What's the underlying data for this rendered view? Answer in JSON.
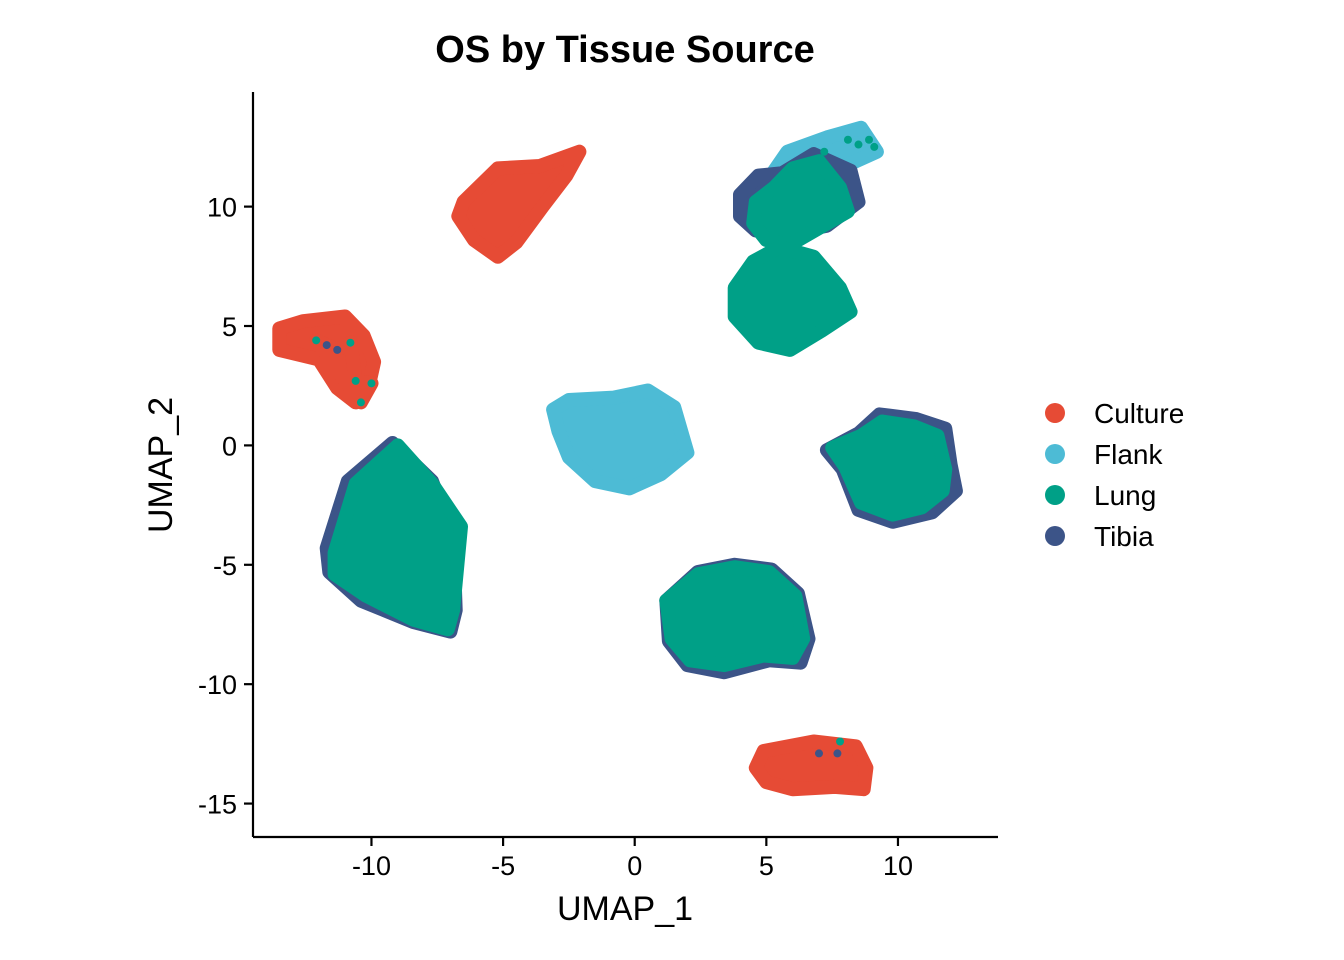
{
  "chart_data": {
    "type": "scatter",
    "title": "OS by Tissue Source",
    "xlabel": "UMAP_1",
    "ylabel": "UMAP_2",
    "xlim": [
      -14.5,
      13.8
    ],
    "ylim": [
      -16.4,
      14.8
    ],
    "xticks": [
      -10,
      -5,
      0,
      5,
      10
    ],
    "yticks": [
      10,
      5,
      0,
      -5,
      -10,
      -15
    ],
    "xtick_labels": [
      "-10",
      "-5",
      "0",
      "5",
      "10"
    ],
    "ytick_labels": [
      "10",
      "5",
      "0",
      "-5",
      "-10",
      "-15"
    ],
    "grid": false,
    "legend_position": "right",
    "series": [
      {
        "name": "Culture",
        "color": "#E64B35"
      },
      {
        "name": "Flank",
        "color": "#4DBBD5"
      },
      {
        "name": "Lung",
        "color": "#00A087"
      },
      {
        "name": "Tibia",
        "color": "#3C5488"
      }
    ],
    "clusters": [
      {
        "series": "Culture",
        "points": [
          [
            -6.5,
            10.2
          ],
          [
            -5.2,
            11.6
          ],
          [
            -3.6,
            11.7
          ],
          [
            -2.1,
            12.3
          ],
          [
            -2.6,
            11.3
          ],
          [
            -3.5,
            10.0
          ],
          [
            -4.5,
            8.5
          ],
          [
            -5.2,
            7.9
          ],
          [
            -6.1,
            8.6
          ],
          [
            -6.7,
            9.6
          ]
        ]
      },
      {
        "series": "Culture",
        "points": [
          [
            -13.5,
            4.9
          ],
          [
            -12.6,
            5.2
          ],
          [
            -11.0,
            5.4
          ],
          [
            -10.3,
            4.6
          ],
          [
            -9.9,
            3.5
          ],
          [
            -10.1,
            2.5
          ],
          [
            -10.6,
            1.8
          ],
          [
            -11.3,
            2.4
          ],
          [
            -12.0,
            3.6
          ],
          [
            -13.5,
            4.0
          ]
        ]
      },
      {
        "series": "Culture",
        "points": [
          [
            -12.1,
            4.4
          ],
          [
            -11.7,
            4.2
          ],
          [
            -11.3,
            4.0
          ],
          [
            -10.8,
            4.3
          ],
          [
            -10.6,
            2.7
          ],
          [
            -10.0,
            2.6
          ],
          [
            -10.4,
            1.8
          ]
        ]
      },
      {
        "series": "Culture",
        "points": [
          [
            4.9,
            -12.8
          ],
          [
            6.8,
            -12.4
          ],
          [
            8.4,
            -12.6
          ],
          [
            8.8,
            -13.5
          ],
          [
            8.7,
            -14.4
          ],
          [
            7.6,
            -14.3
          ],
          [
            6.0,
            -14.4
          ],
          [
            5.0,
            -14.1
          ],
          [
            4.6,
            -13.5
          ]
        ]
      },
      {
        "series": "Flank",
        "points": [
          [
            -3.1,
            1.5
          ],
          [
            -2.5,
            1.9
          ],
          [
            -0.8,
            2.0
          ],
          [
            0.5,
            2.3
          ],
          [
            1.5,
            1.6
          ],
          [
            2.0,
            -0.3
          ],
          [
            1.0,
            -1.2
          ],
          [
            -0.2,
            -1.8
          ],
          [
            -1.5,
            -1.5
          ],
          [
            -2.5,
            -0.5
          ],
          [
            -2.9,
            0.6
          ]
        ]
      },
      {
        "series": "Flank",
        "points": [
          [
            5.3,
            11.5
          ],
          [
            5.8,
            12.3
          ],
          [
            7.3,
            12.9
          ],
          [
            8.6,
            13.3
          ],
          [
            9.2,
            12.3
          ],
          [
            8.2,
            11.8
          ],
          [
            6.8,
            11.2
          ],
          [
            5.8,
            10.5
          ],
          [
            5.0,
            10.5
          ]
        ]
      },
      {
        "series": "Tibia",
        "points": [
          [
            4.0,
            10.5
          ],
          [
            4.7,
            11.3
          ],
          [
            5.6,
            11.4
          ],
          [
            6.8,
            12.2
          ],
          [
            8.2,
            11.5
          ],
          [
            8.5,
            10.2
          ],
          [
            7.3,
            9.2
          ],
          [
            5.9,
            8.9
          ],
          [
            4.6,
            9.0
          ],
          [
            4.0,
            9.6
          ]
        ]
      },
      {
        "series": "Lung",
        "points": [
          [
            4.6,
            10.2
          ],
          [
            5.3,
            10.8
          ],
          [
            6.0,
            11.6
          ],
          [
            7.0,
            11.9
          ],
          [
            7.8,
            10.8
          ],
          [
            8.1,
            9.8
          ],
          [
            7.0,
            9.1
          ],
          [
            5.9,
            8.4
          ],
          [
            5.0,
            8.6
          ],
          [
            4.5,
            9.3
          ]
        ]
      },
      {
        "series": "Lung",
        "points": [
          [
            3.8,
            6.6
          ],
          [
            4.5,
            7.7
          ],
          [
            5.5,
            8.3
          ],
          [
            6.8,
            7.9
          ],
          [
            7.8,
            6.6
          ],
          [
            8.2,
            5.6
          ],
          [
            7.1,
            4.8
          ],
          [
            5.9,
            4.0
          ],
          [
            4.7,
            4.3
          ],
          [
            3.8,
            5.4
          ]
        ]
      },
      {
        "series": "Tibia",
        "points": [
          [
            7.3,
            -0.2
          ],
          [
            8.5,
            0.5
          ],
          [
            9.3,
            1.3
          ],
          [
            10.7,
            1.1
          ],
          [
            11.8,
            0.7
          ],
          [
            12.0,
            -0.8
          ],
          [
            12.2,
            -1.9
          ],
          [
            11.3,
            -2.8
          ],
          [
            9.8,
            -3.2
          ],
          [
            8.5,
            -2.7
          ],
          [
            7.9,
            -1.0
          ]
        ]
      },
      {
        "series": "Lung",
        "points": [
          [
            7.5,
            -0.1
          ],
          [
            8.6,
            0.4
          ],
          [
            9.4,
            1.0
          ],
          [
            10.6,
            0.8
          ],
          [
            11.5,
            0.4
          ],
          [
            11.8,
            -1.0
          ],
          [
            11.7,
            -1.9
          ],
          [
            10.9,
            -2.6
          ],
          [
            9.8,
            -2.9
          ],
          [
            8.6,
            -2.4
          ],
          [
            8.0,
            -0.9
          ]
        ]
      },
      {
        "series": "Tibia",
        "points": [
          [
            -11.7,
            -4.3
          ],
          [
            -10.9,
            -1.5
          ],
          [
            -9.2,
            0.1
          ],
          [
            -7.7,
            -1.5
          ],
          [
            -6.9,
            -3.8
          ],
          [
            -6.8,
            -6.9
          ],
          [
            -7.0,
            -7.8
          ],
          [
            -8.4,
            -7.4
          ],
          [
            -10.4,
            -6.5
          ],
          [
            -11.6,
            -5.3
          ]
        ]
      },
      {
        "series": "Lung",
        "points": [
          [
            -11.4,
            -4.5
          ],
          [
            -10.6,
            -1.6
          ],
          [
            -9.0,
            0.0
          ],
          [
            -7.7,
            -1.6
          ],
          [
            -6.6,
            -3.4
          ],
          [
            -6.9,
            -6.9
          ],
          [
            -7.1,
            -7.7
          ],
          [
            -8.4,
            -7.3
          ],
          [
            -10.2,
            -6.3
          ],
          [
            -11.4,
            -5.4
          ]
        ]
      },
      {
        "series": "Tibia",
        "points": [
          [
            1.2,
            -6.5
          ],
          [
            2.4,
            -5.3
          ],
          [
            3.8,
            -5.0
          ],
          [
            5.2,
            -5.2
          ],
          [
            6.2,
            -6.2
          ],
          [
            6.6,
            -8.1
          ],
          [
            6.3,
            -9.1
          ],
          [
            5.1,
            -9.0
          ],
          [
            3.4,
            -9.5
          ],
          [
            2.0,
            -9.2
          ],
          [
            1.3,
            -8.2
          ]
        ]
      },
      {
        "series": "Lung",
        "points": [
          [
            1.2,
            -6.5
          ],
          [
            2.4,
            -5.4
          ],
          [
            3.8,
            -5.1
          ],
          [
            5.1,
            -5.3
          ],
          [
            6.1,
            -6.3
          ],
          [
            6.4,
            -8.1
          ],
          [
            6.0,
            -8.9
          ],
          [
            4.9,
            -8.8
          ],
          [
            3.4,
            -9.2
          ],
          [
            2.1,
            -9.0
          ],
          [
            1.4,
            -8.1
          ]
        ]
      }
    ],
    "scattered_points": [
      {
        "series": "Lung",
        "x": -12.1,
        "y": 4.4
      },
      {
        "series": "Tibia",
        "x": -11.7,
        "y": 4.2
      },
      {
        "series": "Tibia",
        "x": -11.3,
        "y": 4.0
      },
      {
        "series": "Lung",
        "x": -10.8,
        "y": 4.3
      },
      {
        "series": "Lung",
        "x": -10.6,
        "y": 2.7
      },
      {
        "series": "Lung",
        "x": -10.0,
        "y": 2.6
      },
      {
        "series": "Lung",
        "x": -10.4,
        "y": 1.8
      },
      {
        "series": "Tibia",
        "x": 7.0,
        "y": -12.9
      },
      {
        "series": "Tibia",
        "x": 7.7,
        "y": -12.9
      },
      {
        "series": "Lung",
        "x": 7.8,
        "y": -12.4
      },
      {
        "series": "Lung",
        "x": 8.1,
        "y": 12.8
      },
      {
        "series": "Lung",
        "x": 8.5,
        "y": 12.6
      },
      {
        "series": "Lung",
        "x": 8.9,
        "y": 12.8
      },
      {
        "series": "Lung",
        "x": 9.1,
        "y": 12.5
      },
      {
        "series": "Lung",
        "x": 7.2,
        "y": 12.3
      }
    ]
  }
}
